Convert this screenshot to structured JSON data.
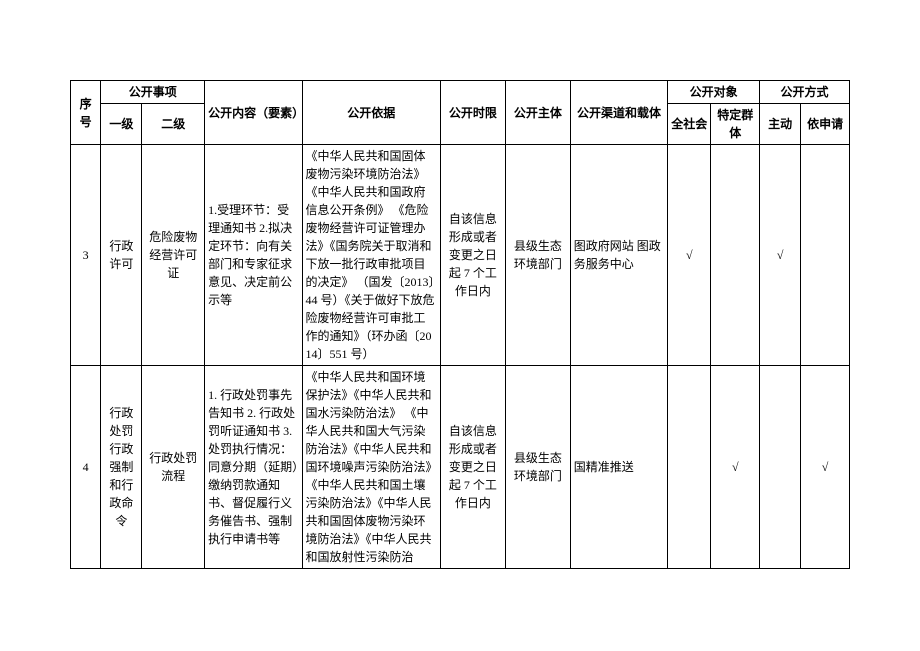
{
  "headers": {
    "seq": "序号",
    "matter": "公开事项",
    "level1": "一级",
    "level2": "二级",
    "content": "公开内容（要素）",
    "basis": "公开依据",
    "timelimit": "公开时限",
    "subject": "公开主体",
    "channel": "公开渠道和载体",
    "target": "公开对象",
    "target_all": "全社会",
    "target_specific": "特定群体",
    "method": "公开方式",
    "method_active": "主动",
    "method_apply": "依申请"
  },
  "rows": [
    {
      "seq": "3",
      "level1": "行政许可",
      "level2": "危险废物经营许可证",
      "content": "1.受理环节：受理通知书\n2.拟决定环节：向有关部门和专家征求意见、决定前公示等",
      "basis": "《中华人民共和国固体废物污染环境防治法》《中华人民共和国政府信息公开条例》\n《危险废物经营许可证管理办法》《国务院关于取消和下放一批行政审批项目的决定》\n（国发〔2013〕44 号）《关于做好下放危险废物经营许可审批工作的通知》（环办函〔2014〕551 号）",
      "timelimit": "自该信息形成或者变更之日起 7 个工作日内",
      "subject": "县级生态环境部门",
      "channel": "图政府网站\n图政务服务中心",
      "target_all": "√",
      "target_specific": "",
      "method_active": "√",
      "method_apply": ""
    },
    {
      "seq": "4",
      "level1": "行政处罚行政强制和行政命令",
      "level2": "行政处罚流程",
      "content": "1. 行政处罚事先告知书\n2. 行政处罚听证通知书\n3. 处罚执行情况：同意分期（延期）缴纳罚款通知书、督促履行义务催告书、强制执行申请书等",
      "basis": "《中华人民共和国环境保护法》《中华人民共和国水污染防治法》\n《中华人民共和国大气污染防治法》《中华人民共和国环境噪声污染防治法》《中华人民共和国土壤污染防治法》《中华人民共和国固体废物污染环境防治法》《中华人民共和国放射性污染防治",
      "timelimit": "自该信息形成或者变更之日起 7 个工作日内",
      "subject": "县级生态环境部门",
      "channel": "国精准推送",
      "target_all": "",
      "target_specific": "√",
      "method_active": "",
      "method_apply": "√"
    }
  ],
  "check": "√"
}
